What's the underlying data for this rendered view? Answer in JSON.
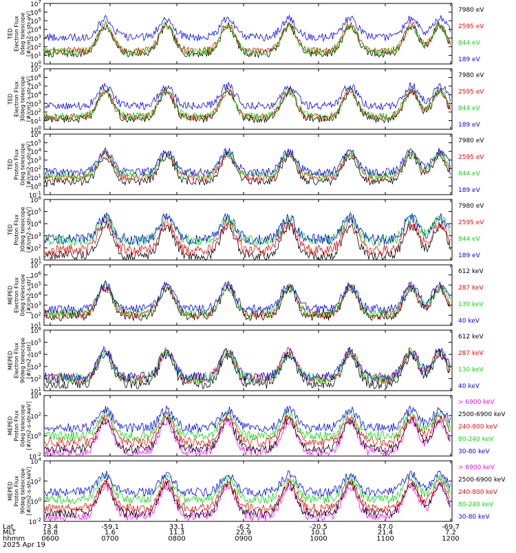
{
  "chart_data": [
    {
      "type": "line",
      "ylabel_lines": [
        "TED",
        "Electron Flux",
        "0deg telescope",
        "[#/cm2-s-str-eV]"
      ],
      "y_tick_exponents": [
        0,
        1,
        2,
        3,
        4,
        5,
        6,
        7
      ],
      "yscale": "log",
      "series": [
        {
          "name": "7980 eV",
          "color": "#000000",
          "level": 1.2
        },
        {
          "name": "2595 eV",
          "color": "#ff0000",
          "level": 1.5
        },
        {
          "name": "844 eV",
          "color": "#00dd00",
          "level": 1.4
        },
        {
          "name": "189 eV",
          "color": "#0000ff",
          "level": 3.1
        }
      ]
    },
    {
      "type": "line",
      "ylabel_lines": [
        "TED",
        "Electron Flux",
        "30deg telescope",
        "[#/cm2-s-str-eV]"
      ],
      "y_tick_exponents": [
        0,
        1,
        2,
        3,
        4,
        5,
        6,
        7
      ],
      "yscale": "log",
      "series": [
        {
          "name": "7980 eV",
          "color": "#000000",
          "level": 1.2
        },
        {
          "name": "2595 eV",
          "color": "#ff0000",
          "level": 1.4
        },
        {
          "name": "844 eV",
          "color": "#00dd00",
          "level": 1.5
        },
        {
          "name": "189 eV",
          "color": "#0000ff",
          "level": 2.7
        }
      ]
    },
    {
      "type": "line",
      "ylabel_lines": [
        "TED",
        "Proton Flux",
        "0deg telescope",
        "[#/cm2-s-str-eV]"
      ],
      "y_tick_exponents": [
        -1,
        0,
        1,
        2,
        3,
        4,
        5,
        6
      ],
      "yscale": "log",
      "series": [
        {
          "name": "7980 eV",
          "color": "#000000",
          "level": 0.5
        },
        {
          "name": "2595 eV",
          "color": "#ff0000",
          "level": 1.0
        },
        {
          "name": "844 eV",
          "color": "#00dd00",
          "level": 1.2
        },
        {
          "name": "189 eV",
          "color": "#0000ff",
          "level": 1.6
        }
      ]
    },
    {
      "type": "line",
      "ylabel_lines": [
        "TED",
        "Proton Flux",
        "30deg telescope",
        "[#/cm2-s-str-eV]"
      ],
      "y_tick_exponents": [
        1,
        2,
        3,
        4,
        5,
        6
      ],
      "yscale": "log",
      "series": [
        {
          "name": "7980 eV",
          "color": "#000000",
          "level": 1.3
        },
        {
          "name": "2595 eV",
          "color": "#ff0000",
          "level": 1.8
        },
        {
          "name": "844 eV",
          "color": "#00dd00",
          "level": 2.6
        },
        {
          "name": "189 eV",
          "color": "#0000ff",
          "level": 2.7
        }
      ]
    },
    {
      "type": "line",
      "ylabel_lines": [
        "MEPED",
        "Electron Flux",
        "0deg telescope",
        "[#/cm2-s-str]"
      ],
      "y_tick_exponents": [
        1,
        2,
        3,
        4,
        5,
        6,
        7
      ],
      "yscale": "log",
      "series": [
        {
          "name": "612 keV",
          "color": "#000000",
          "level": 1.9
        },
        {
          "name": "287 keV",
          "color": "#ff0000",
          "level": 2.1
        },
        {
          "name": "130 keV",
          "color": "#00dd00",
          "level": 2.2
        },
        {
          "name": "40 keV",
          "color": "#0000ff",
          "level": 2.6
        }
      ]
    },
    {
      "type": "line",
      "ylabel_lines": [
        "MEPED",
        "Electron Flux",
        "90deg telescope",
        "[#/cm2-s-str]"
      ],
      "y_tick_exponents": [
        1,
        2,
        3,
        4,
        5,
        6
      ],
      "yscale": "log",
      "series": [
        {
          "name": "612 keV",
          "color": "#000000",
          "level": 1.6
        },
        {
          "name": "287 keV",
          "color": "#ff0000",
          "level": 2.0
        },
        {
          "name": "130 keV",
          "color": "#00dd00",
          "level": 2.0
        },
        {
          "name": "40 keV",
          "color": "#0000ff",
          "level": 2.1
        }
      ]
    },
    {
      "type": "line",
      "ylabel_lines": [
        "MEPED",
        "Proton Flux",
        "0deg telescope",
        "[#/cm2-s-str-keV]"
      ],
      "y_tick_exponents": [
        -2,
        0,
        2,
        4
      ],
      "yscale": "log",
      "series": [
        {
          "name": "> 6900 keV",
          "color": "#ff00ff",
          "level": -1.6
        },
        {
          "name": "2500-6900 keV",
          "color": "#000000",
          "level": -1.3
        },
        {
          "name": "240-800 keV",
          "color": "#ff0000",
          "level": -0.6
        },
        {
          "name": "80-240 keV",
          "color": "#00dd00",
          "level": 0.0
        },
        {
          "name": "30-80 keV",
          "color": "#0000ff",
          "level": 0.8
        }
      ]
    },
    {
      "type": "line",
      "ylabel_lines": [
        "MEPED",
        "Proton Flux",
        "90deg telescope",
        "[#/cm2-s-str-keV]"
      ],
      "y_tick_exponents": [
        -2,
        0,
        2,
        4
      ],
      "yscale": "log",
      "series": [
        {
          "name": "> 6900 keV",
          "color": "#ff00ff",
          "level": -1.5
        },
        {
          "name": "2500-6900 keV",
          "color": "#000000",
          "level": -1.2
        },
        {
          "name": "240-800 keV",
          "color": "#ff0000",
          "level": -0.7
        },
        {
          "name": "80-240 keV",
          "color": "#00dd00",
          "level": 0.2
        },
        {
          "name": "30-80 keV",
          "color": "#0000ff",
          "level": 0.9
        }
      ]
    }
  ],
  "x_axis": {
    "row_labels": [
      "Lat",
      "MLT",
      "hhmm",
      "2025 Apr 19"
    ],
    "ticks": [
      {
        "lat": "73.4",
        "mlt": "18.8",
        "hhmm": "0600"
      },
      {
        "lat": "-59.1",
        "mlt": "1.6",
        "hhmm": "0700"
      },
      {
        "lat": "33.1",
        "mlt": "11.3",
        "hhmm": "0800"
      },
      {
        "lat": "-6.2",
        "mlt": "22.9",
        "hhmm": "0900"
      },
      {
        "lat": "-20.5",
        "mlt": "10.1",
        "hhmm": "1000"
      },
      {
        "lat": "47.0",
        "mlt": "21.4",
        "hhmm": "1100"
      },
      {
        "lat": "-69.7",
        "mlt": "7.2",
        "hhmm": "1200"
      }
    ]
  }
}
